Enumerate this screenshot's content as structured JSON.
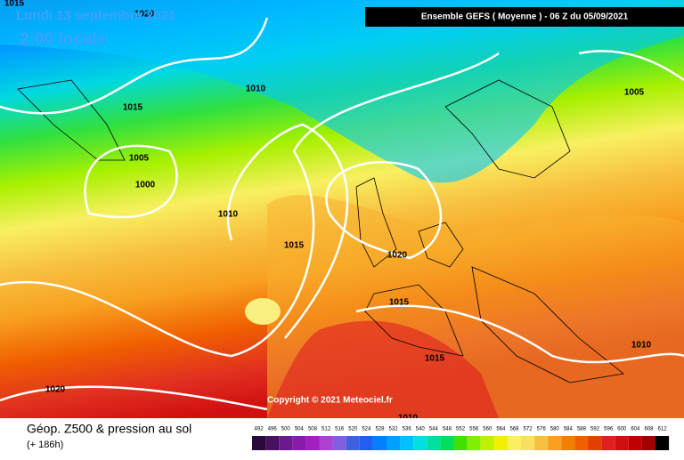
{
  "header": {
    "date": "Lundi 13 septembre 2021",
    "time": "2:00 locale",
    "run": "Ensemble GEFS  ( Moyenne )  -  06 Z du 05/09/2021"
  },
  "copyright": "Copyright © 2021 Meteociel.fr",
  "footer": {
    "title": "Géop. Z500 & pression au sol",
    "lead": "(+ 186h)"
  },
  "isobar_labels": [
    1015,
    1020,
    1010,
    1015,
    1005,
    1000,
    1010,
    1015,
    1020,
    1015,
    1015,
    1010,
    1005,
    1020,
    1010
  ],
  "scale": {
    "values": [
      492,
      496,
      500,
      504,
      508,
      512,
      516,
      520,
      524,
      528,
      532,
      536,
      540,
      544,
      548,
      552,
      556,
      560,
      564,
      568,
      572,
      576,
      580,
      584,
      588,
      592,
      596,
      600,
      604,
      608,
      612
    ],
    "colors": [
      "#2a0a3a",
      "#4a1060",
      "#6a1a8a",
      "#8a1aaa",
      "#a020c0",
      "#b040d0",
      "#8060e0",
      "#4060e0",
      "#2060f0",
      "#0080ff",
      "#00a0ff",
      "#00c0ff",
      "#00e0e0",
      "#00e0a0",
      "#00e060",
      "#40e000",
      "#80f000",
      "#c0f000",
      "#f0f000",
      "#f8f060",
      "#f8e060",
      "#f8c040",
      "#f8a020",
      "#f08000",
      "#f06000",
      "#e04000",
      "#e02020",
      "#d01010",
      "#c00000",
      "#a00000",
      "#000000"
    ]
  }
}
